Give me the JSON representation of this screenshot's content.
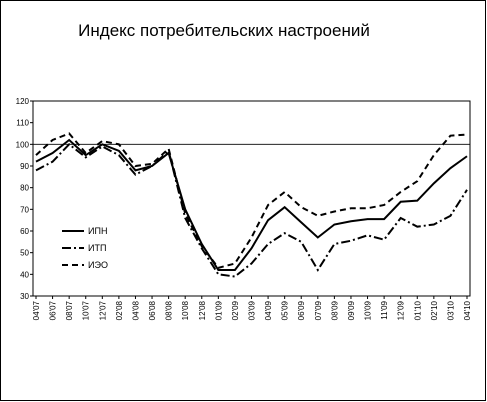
{
  "chart_data": {
    "type": "line",
    "title": "Индекс потребительских настроений",
    "categories": [
      "04'07",
      "06'07",
      "08'07",
      "10'07",
      "12'07",
      "02'08",
      "04'08",
      "06'08",
      "08'08",
      "10'08",
      "12'08",
      "01'09",
      "02'09",
      "03'09",
      "04'09",
      "05'09",
      "06'09",
      "07'09",
      "08'09",
      "09'09",
      "10'09",
      "11'09",
      "12'09",
      "01'10",
      "02'10",
      "03'10",
      "04'10"
    ],
    "series": [
      {
        "name": "ИПН",
        "color": "#000000",
        "line_style": "solid",
        "values": [
          92,
          96,
          102,
          95,
          100,
          97,
          88,
          90,
          96,
          70,
          54,
          42,
          42,
          52,
          65,
          71,
          64,
          57,
          63,
          64.5,
          65.5,
          65.5,
          73.5,
          74,
          82,
          89,
          94.5
        ]
      },
      {
        "name": "ИТП",
        "color": "#000000",
        "line_style": "dashdot",
        "values": [
          88,
          92,
          100,
          94,
          99,
          95,
          86,
          90,
          97,
          66,
          52,
          40,
          39,
          45,
          54,
          59,
          55,
          42,
          54,
          55.5,
          58,
          56,
          66,
          62,
          63,
          67,
          79
        ]
      },
      {
        "name": "ИЭО",
        "color": "#000000",
        "line_style": "dashed",
        "values": [
          95,
          102,
          105,
          96,
          101.5,
          100,
          90,
          91,
          98,
          68,
          53,
          43,
          45,
          57,
          72,
          78,
          71,
          67,
          69,
          70.5,
          70.5,
          72,
          78,
          83,
          95,
          104,
          104.5
        ]
      }
    ],
    "ylim": [
      30,
      120
    ],
    "yticks": [
      30,
      40,
      50,
      60,
      70,
      80,
      90,
      100,
      110,
      120
    ],
    "reference_line": 100,
    "legend": "left",
    "grid": false
  }
}
